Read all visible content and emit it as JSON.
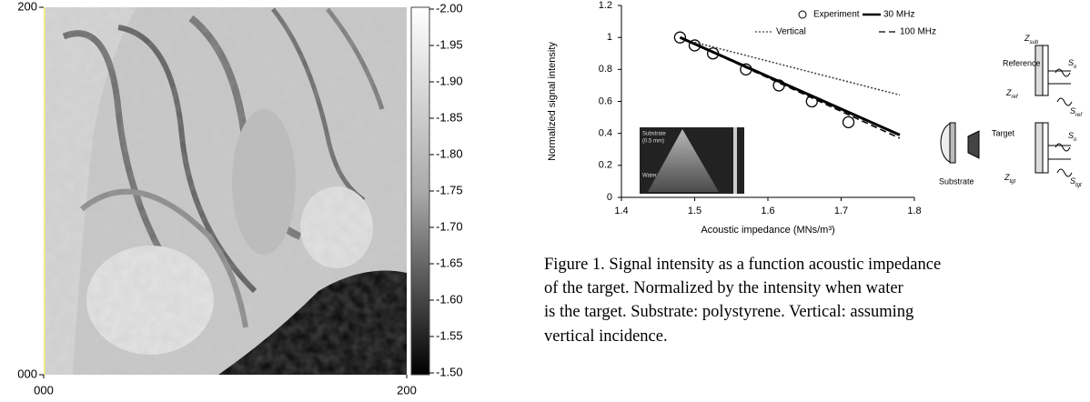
{
  "chart_data": [
    {
      "type": "image",
      "xlim": [
        0,
        200
      ],
      "ylim": [
        0,
        200
      ],
      "xticks": [
        {
          "value": 0,
          "label": "000"
        },
        {
          "value": 200,
          "label": "200"
        }
      ],
      "yticks": [
        {
          "value": 0,
          "label": "000"
        },
        {
          "value": 200,
          "label": "200"
        }
      ],
      "colorbar": {
        "lim": [
          -2,
          -1.5
        ],
        "ticks": [
          {
            "value": -2,
            "label": "-2.00"
          },
          {
            "value": -1.95,
            "label": "-1.95"
          },
          {
            "value": -1.9,
            "label": "-1.90"
          },
          {
            "value": -1.85,
            "label": "-1.85"
          },
          {
            "value": -1.8,
            "label": "-1.80"
          },
          {
            "value": -1.75,
            "label": "-1.75"
          },
          {
            "value": -1.7,
            "label": "-1.70"
          },
          {
            "value": -1.65,
            "label": "-1.65"
          },
          {
            "value": -1.6,
            "label": "-1.60"
          },
          {
            "value": -1.55,
            "label": "-1.55"
          },
          {
            "value": -1.5,
            "label": "-1.50"
          }
        ]
      }
    },
    {
      "type": "line",
      "x_label": "Acoustic impedance (MNs/m³)",
      "y_label": "Normalized signal intensity",
      "xlim": [
        1.4,
        1.8
      ],
      "ylim": [
        0,
        1.2
      ],
      "xticks": [
        1.4,
        1.5,
        1.6,
        1.7,
        1.8
      ],
      "yticks": [
        0,
        0.2,
        0.4,
        0.6,
        0.8,
        1,
        1.2
      ],
      "series": [
        {
          "name": "Experiment",
          "style": "marker",
          "color": "#000000",
          "x": [
            1.48,
            1.5,
            1.525,
            1.57,
            1.615,
            1.66,
            1.71
          ],
          "values": [
            1.0,
            0.95,
            0.9,
            0.8,
            0.7,
            0.6,
            0.47
          ]
        },
        {
          "name": "30 MHz",
          "style": "solid",
          "color": "#000000",
          "x": [
            1.48,
            1.78
          ],
          "values": [
            1.0,
            0.39
          ]
        },
        {
          "name": "Vertical",
          "style": "dotted",
          "color": "#444444",
          "x": [
            1.5,
            1.78
          ],
          "values": [
            0.97,
            0.64
          ]
        },
        {
          "name": "100 MHz",
          "style": "dashed",
          "color": "#000000",
          "x": [
            1.48,
            1.78
          ],
          "values": [
            1.0,
            0.37
          ]
        }
      ],
      "inset_labels": [
        "Substrate",
        "(0.5 mm)",
        "Water"
      ]
    }
  ],
  "diagram": {
    "reference": "Reference",
    "target": "Target",
    "substrate": "Substrate",
    "z_sub": {
      "main": "Z",
      "sub": "sub"
    },
    "z_ref": {
      "main": "Z",
      "sub": "ref"
    },
    "z_tgt": {
      "main": "Z",
      "sub": "tgt"
    },
    "s_o_ref": {
      "main": "S",
      "sub": "o"
    },
    "s_ref": {
      "main": "S",
      "sub": "ref"
    },
    "s_o_tgt": {
      "main": "S",
      "sub": "o"
    },
    "s_tgt": {
      "main": "S",
      "sub": "tgt"
    }
  },
  "caption": {
    "lines": [
      "Figure 1. Signal intensity as a function acoustic impedance",
      "of the target. Normalized by the intensity when water",
      "is the target. Substrate: polystyrene. Vertical: assuming",
      "vertical incidence."
    ]
  }
}
